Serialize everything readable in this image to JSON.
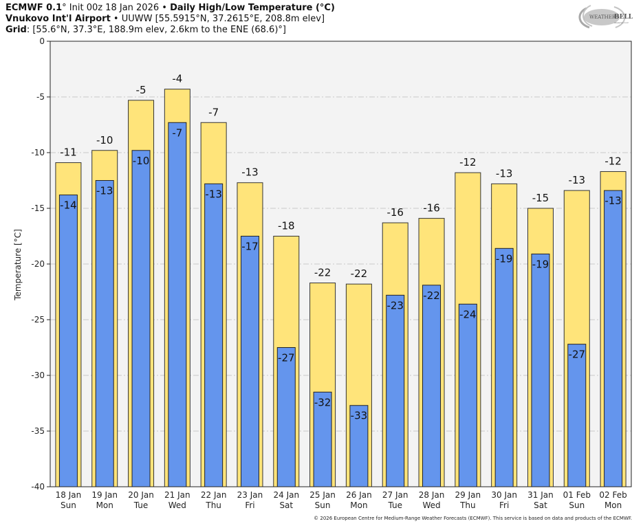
{
  "header": {
    "line1_bold_a": "ECMWF 0.1",
    "line1_deg": "°",
    "line1_normal": " Init 00z 18 Jan 2026 • ",
    "line1_bold_b": "Daily High/Low Temperature (°C)",
    "line2_bold": "Vnukovo Int'l Airport",
    "line2_normal": " • UUWW [55.5915°N, 37.2615°E, 208.8m elev]",
    "line3_bold": "Grid",
    "line3_normal": ": [55.6°N, 37.3°E, 188.9m elev, 2.6km to the ENE (68.6)°]"
  },
  "logo": {
    "text_a": "WEATHER",
    "text_b": "BELL",
    "sub": "Analytics LLC"
  },
  "credit": "© 2026 European Centre for Medium-Range Weather Forecasts (ECMWF). This service is based on data and products of the ECMWF.",
  "colors": {
    "high": "#FFE47A",
    "low": "#6495ED",
    "plot_bg": "#F3F3F3",
    "grid": "#C8C8C8"
  },
  "chart_data": {
    "type": "bar",
    "title": "Daily High/Low Temperature (°C)",
    "xlabel": "",
    "ylabel": "Temperature [°C]",
    "ylim": [
      -40,
      0
    ],
    "yticks": [
      0,
      -5,
      -10,
      -15,
      -20,
      -25,
      -30,
      -35,
      -40
    ],
    "grid": true,
    "categories": [
      {
        "date": "18 Jan",
        "day": "Sun"
      },
      {
        "date": "19 Jan",
        "day": "Mon"
      },
      {
        "date": "20 Jan",
        "day": "Tue"
      },
      {
        "date": "21 Jan",
        "day": "Wed"
      },
      {
        "date": "22 Jan",
        "day": "Thu"
      },
      {
        "date": "23 Jan",
        "day": "Fri"
      },
      {
        "date": "24 Jan",
        "day": "Sat"
      },
      {
        "date": "25 Jan",
        "day": "Sun"
      },
      {
        "date": "26 Jan",
        "day": "Mon"
      },
      {
        "date": "27 Jan",
        "day": "Tue"
      },
      {
        "date": "28 Jan",
        "day": "Wed"
      },
      {
        "date": "29 Jan",
        "day": "Thu"
      },
      {
        "date": "30 Jan",
        "day": "Fri"
      },
      {
        "date": "31 Jan",
        "day": "Sat"
      },
      {
        "date": "01 Feb",
        "day": "Sun"
      },
      {
        "date": "02 Feb",
        "day": "Mon"
      }
    ],
    "series": [
      {
        "name": "High",
        "values": [
          -10.9,
          -9.8,
          -5.3,
          -4.3,
          -7.3,
          -12.7,
          -17.5,
          -21.7,
          -21.8,
          -16.3,
          -15.9,
          -11.8,
          -12.8,
          -15.0,
          -13.4,
          -11.7
        ],
        "labels": [
          "-11",
          "-10",
          "-5",
          "-4",
          "-7",
          "-13",
          "-18",
          "-22",
          "-22",
          "-16",
          "-16",
          "-12",
          "-13",
          "-15",
          "-13",
          "-12"
        ]
      },
      {
        "name": "Low",
        "values": [
          -13.8,
          -12.5,
          -9.8,
          -7.3,
          -12.8,
          -17.5,
          -27.5,
          -31.5,
          -32.7,
          -22.8,
          -21.9,
          -23.6,
          -18.6,
          -19.1,
          -27.2,
          -13.4
        ],
        "labels": [
          "-14",
          "-13",
          "-10",
          "-7",
          "-13",
          "-17",
          "-27",
          "-32",
          "-33",
          "-23",
          "-22",
          "-24",
          "-19",
          "-19",
          "-27",
          "-13"
        ]
      }
    ]
  }
}
